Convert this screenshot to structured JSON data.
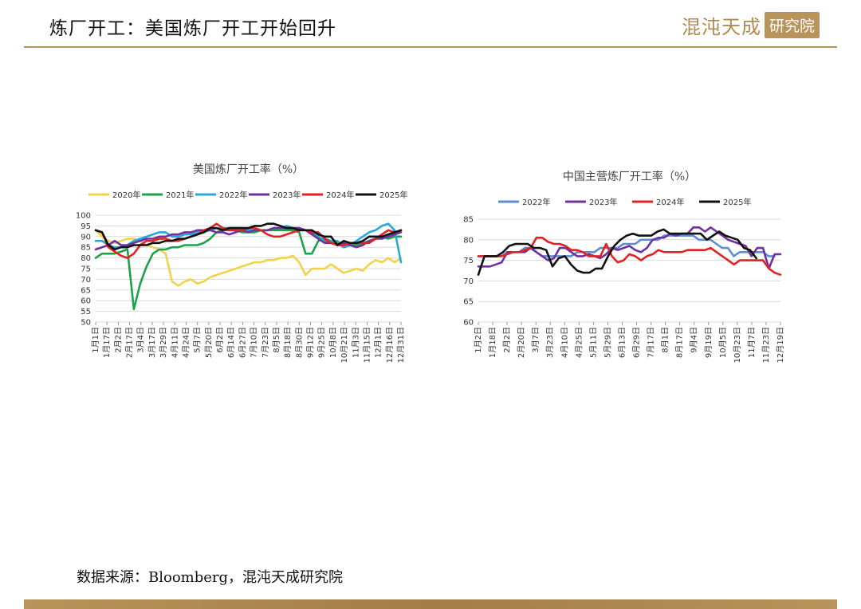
{
  "header": {
    "title": "炼厂开工：美国炼厂开工开始回升",
    "logo_text": "混沌天成",
    "logo_box_text": "研究院"
  },
  "footer": {
    "source": "数据来源：Bloomberg，混沌天成研究院"
  },
  "chart_data": [
    {
      "type": "line",
      "title": "美国炼厂开工率（%）",
      "xlabel": "",
      "ylabel": "",
      "ylim": [
        50,
        100
      ],
      "yticks": [
        "50",
        "55",
        "60",
        "65",
        "70",
        "75",
        "80",
        "85",
        "90",
        "95",
        "100"
      ],
      "xticks": [
        "1月1日",
        "1月17日",
        "2月2日",
        "2月17日",
        "3月4日",
        "3月17日",
        "3月29日",
        "4月11日",
        "4月24日",
        "5月7日",
        "5月20日",
        "6月2日",
        "6月14日",
        "6月27日",
        "7月10日",
        "7月23日",
        "8月5日",
        "8月18日",
        "8月30日",
        "9月12日",
        "9月25日",
        "10月8日",
        "10月21日",
        "11月3日",
        "11月15日",
        "12月1日",
        "12月16日",
        "12月31日"
      ],
      "legend_position": "top",
      "grid": true,
      "series": [
        {
          "name": "2020年",
          "color": "#f3d24a",
          "values": [
            93,
            90,
            88,
            87,
            88,
            89,
            89,
            88,
            86,
            85,
            84,
            82,
            69,
            67,
            69,
            70,
            68,
            69,
            71,
            72,
            73,
            74,
            75,
            76,
            77,
            78,
            78,
            79,
            79,
            80,
            80,
            81,
            78,
            72,
            75,
            75,
            75,
            77,
            75,
            73,
            74,
            75,
            74,
            77,
            79,
            78,
            80,
            78,
            80
          ]
        },
        {
          "name": "2021年",
          "color": "#1aa34a",
          "values": [
            80,
            82,
            82,
            82,
            83,
            84,
            56,
            68,
            76,
            82,
            84,
            84,
            85,
            85,
            86,
            86,
            86,
            87,
            89,
            92,
            93,
            93,
            93,
            92,
            92,
            92,
            93,
            93,
            93,
            93,
            93,
            93,
            92,
            82,
            82,
            88,
            89,
            88,
            87,
            85,
            86,
            86,
            87,
            88,
            89,
            90,
            89,
            90,
            90
          ]
        },
        {
          "name": "2022年",
          "color": "#29a8d8",
          "values": [
            88,
            88,
            86,
            85,
            85,
            86,
            88,
            89,
            90,
            91,
            92,
            92,
            90,
            90,
            91,
            91,
            92,
            92,
            93,
            94,
            94,
            94,
            94,
            94,
            93,
            93,
            93,
            93,
            94,
            94,
            95,
            94,
            94,
            93,
            92,
            90,
            88,
            88,
            88,
            85,
            86,
            88,
            90,
            92,
            93,
            95,
            96,
            93,
            78
          ]
        },
        {
          "name": "2023年",
          "color": "#7030a0",
          "values": [
            84,
            85,
            86,
            88,
            86,
            86,
            87,
            88,
            89,
            89,
            90,
            90,
            91,
            91,
            92,
            92,
            93,
            93,
            93,
            92,
            92,
            91,
            92,
            93,
            92,
            93,
            93,
            93,
            94,
            94,
            94,
            94,
            94,
            93,
            91,
            89,
            87,
            87,
            86,
            87,
            86,
            85,
            86,
            88,
            89,
            89,
            90,
            91,
            92
          ]
        },
        {
          "name": "2024年",
          "color": "#e32222",
          "values": [
            93,
            92,
            85,
            83,
            81,
            80,
            82,
            86,
            88,
            88,
            89,
            89,
            88,
            88,
            89,
            90,
            91,
            93,
            94,
            96,
            94,
            93,
            93,
            93,
            94,
            94,
            93,
            91,
            90,
            90,
            91,
            92,
            93,
            93,
            92,
            92,
            89,
            87,
            86,
            86,
            87,
            87,
            87,
            87,
            89,
            91,
            93,
            92,
            93
          ]
        },
        {
          "name": "2025年",
          "color": "#111111",
          "values": [
            93,
            92,
            86,
            84,
            85,
            85,
            86,
            86,
            86,
            87,
            87,
            88,
            88,
            89,
            89,
            90,
            91,
            92,
            94,
            94,
            93,
            94,
            94,
            94,
            94,
            95,
            95,
            96,
            96,
            95,
            94,
            94,
            93,
            93,
            93,
            91,
            90,
            90,
            86,
            88,
            87,
            87,
            88,
            90,
            90,
            90,
            91,
            92,
            93
          ]
        }
      ]
    },
    {
      "type": "line",
      "title": "中国主营炼厂开工率（%）",
      "xlabel": "",
      "ylabel": "",
      "ylim": [
        60,
        85
      ],
      "yticks": [
        "60",
        "65",
        "70",
        "75",
        "80",
        "85"
      ],
      "xticks": [
        "1月2日",
        "1月18日",
        "2月2日",
        "2月20日",
        "3月7日",
        "3月23日",
        "4月10日",
        "4月25日",
        "5月11日",
        "5月29日",
        "6月13日",
        "6月29日",
        "7月17日",
        "8月1日",
        "8月17日",
        "9月4日",
        "9月19日",
        "10月5日",
        "10月23日",
        "11月7日",
        "11月23日",
        "12月19日"
      ],
      "legend_position": "top",
      "grid": true,
      "series": [
        {
          "name": "2022年",
          "color": "#5b8fd4",
          "values": [
            76,
            76,
            76,
            76,
            76,
            77,
            77,
            77,
            78,
            78,
            77,
            76,
            76,
            76,
            76,
            76,
            76,
            77,
            77,
            77,
            77,
            78,
            78,
            78,
            78,
            79,
            79,
            79,
            80,
            80,
            80,
            80,
            81,
            81,
            81,
            81,
            81,
            81,
            80,
            80,
            80,
            79,
            78,
            78,
            76,
            77,
            77,
            77,
            77,
            77,
            76,
            76
          ]
        },
        {
          "name": "2023年",
          "color": "#7030a0",
          "values": [
            73.5,
            73.5,
            73.5,
            74,
            74.5,
            77,
            77,
            77,
            77,
            78,
            77,
            76,
            75,
            75.5,
            78,
            78,
            77,
            76,
            76,
            76.5,
            76,
            75.5,
            76.5,
            78,
            77.5,
            78,
            78.5,
            77.5,
            77,
            78,
            80,
            80.5,
            80.5,
            81.5,
            81,
            81.5,
            81.5,
            83,
            83,
            82,
            83,
            82,
            81,
            80,
            79.5,
            79,
            78.5,
            76,
            78,
            78,
            73,
            76.5,
            76.5
          ]
        },
        {
          "name": "2024年",
          "color": "#e32222",
          "values": [
            76,
            76,
            76,
            76,
            76,
            76.5,
            77,
            77,
            77.5,
            78,
            80.5,
            80.5,
            79.5,
            79,
            79,
            78.5,
            77.5,
            77.5,
            77,
            76,
            76,
            76,
            79,
            76,
            74.5,
            75,
            76.5,
            76,
            75,
            76,
            76.5,
            77.5,
            77,
            77,
            77,
            77,
            77.5,
            77.5,
            77.5,
            77.5,
            78,
            77,
            76,
            75,
            74,
            75,
            75,
            75,
            75,
            75,
            73,
            72,
            71.5
          ]
        },
        {
          "name": "2025年",
          "color": "#111111",
          "values": [
            71.5,
            76,
            76,
            76,
            77,
            78.5,
            79,
            79,
            79,
            78,
            78,
            77.5,
            73.5,
            75.5,
            76,
            74,
            72.5,
            72,
            72,
            73,
            73,
            76,
            78.5,
            80,
            81,
            81.5,
            81,
            81,
            81,
            82,
            82.5,
            81.5,
            81.5,
            81.5,
            81.5,
            81.5,
            81.5,
            80,
            81,
            82,
            81,
            80.5,
            80,
            78,
            77.5,
            75.5
          ]
        }
      ]
    }
  ]
}
